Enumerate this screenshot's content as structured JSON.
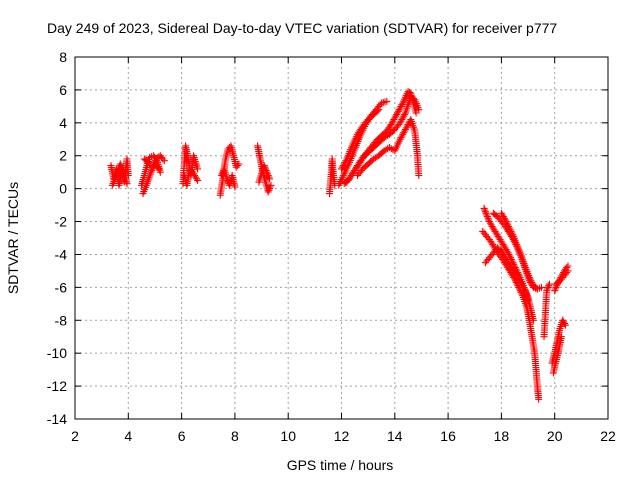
{
  "chart_data": {
    "type": "scatter",
    "title": "Day 249 of 2023, Sidereal Day-to-day VTEC variation (SDTVAR) for receiver p777",
    "xlabel": "GPS time / hours",
    "ylabel": "SDTVAR / TECUs",
    "xlim": [
      2,
      22
    ],
    "ylim": [
      -14,
      8
    ],
    "x_ticks": [
      2,
      4,
      6,
      8,
      10,
      12,
      14,
      16,
      18,
      20,
      22
    ],
    "y_ticks": [
      -14,
      -12,
      -10,
      -8,
      -6,
      -4,
      -2,
      0,
      2,
      4,
      6,
      8
    ],
    "grid": true,
    "marker": "plus",
    "color": "#ff0000",
    "series": [
      {
        "segments": [
          [
            [
              3.35,
              1.4
            ],
            [
              3.45,
              0.6
            ],
            [
              3.55,
              1.2
            ],
            [
              3.65,
              0.2
            ],
            [
              3.75,
              1.0
            ],
            [
              3.85,
              0.4
            ],
            [
              3.95,
              1.8
            ],
            [
              4.0,
              0.8
            ]
          ],
          [
            [
              3.4,
              0.2
            ],
            [
              3.55,
              0.8
            ],
            [
              3.7,
              1.5
            ],
            [
              3.85,
              1.0
            ],
            [
              3.95,
              0.3
            ]
          ],
          [
            [
              4.5,
              0.2
            ],
            [
              4.6,
              0.8
            ],
            [
              4.7,
              1.4
            ],
            [
              4.8,
              1.9
            ],
            [
              4.95,
              2.0
            ],
            [
              5.1,
              1.6
            ],
            [
              5.2,
              1.0
            ]
          ],
          [
            [
              4.6,
              1.8
            ],
            [
              4.75,
              1.6
            ],
            [
              4.9,
              1.3
            ],
            [
              5.05,
              1.8
            ],
            [
              5.2,
              2.0
            ],
            [
              5.35,
              1.7
            ]
          ],
          [
            [
              4.55,
              -0.3
            ],
            [
              4.7,
              0.3
            ],
            [
              4.85,
              1.0
            ],
            [
              5.0,
              1.5
            ],
            [
              5.15,
              1.2
            ]
          ],
          [
            [
              6.05,
              0.3
            ],
            [
              6.1,
              1.5
            ],
            [
              6.15,
              2.6
            ],
            [
              6.25,
              1.8
            ],
            [
              6.35,
              0.8
            ],
            [
              6.45,
              2.0
            ],
            [
              6.6,
              1.2
            ]
          ],
          [
            [
              6.1,
              0.8
            ],
            [
              6.2,
              0.2
            ],
            [
              6.3,
              1.2
            ],
            [
              6.45,
              0.9
            ],
            [
              6.6,
              0.5
            ]
          ],
          [
            [
              7.45,
              -0.4
            ],
            [
              7.55,
              0.6
            ],
            [
              7.65,
              1.8
            ],
            [
              7.75,
              2.4
            ],
            [
              7.85,
              2.6
            ],
            [
              7.95,
              2.0
            ],
            [
              8.05,
              1.3
            ],
            [
              8.15,
              1.5
            ]
          ],
          [
            [
              7.5,
              0.8
            ],
            [
              7.6,
              1.2
            ],
            [
              7.7,
              0.6
            ],
            [
              7.8,
              0.2
            ],
            [
              7.9,
              0.8
            ],
            [
              8.0,
              0.1
            ]
          ],
          [
            [
              8.85,
              2.6
            ],
            [
              8.95,
              1.8
            ],
            [
              9.05,
              1.0
            ],
            [
              9.15,
              0.4
            ],
            [
              9.25,
              -0.2
            ],
            [
              9.35,
              0.2
            ]
          ],
          [
            [
              8.9,
              0.4
            ],
            [
              9.0,
              0.9
            ],
            [
              9.1,
              1.4
            ],
            [
              9.2,
              1.0
            ],
            [
              9.3,
              0.6
            ]
          ],
          [
            [
              11.55,
              -0.3
            ],
            [
              11.6,
              0.6
            ],
            [
              11.65,
              1.8
            ],
            [
              11.7,
              0.8
            ],
            [
              11.75,
              0.2
            ]
          ],
          [
            [
              11.9,
              0.2
            ],
            [
              12.1,
              0.9
            ],
            [
              12.3,
              1.6
            ],
            [
              12.5,
              2.4
            ],
            [
              12.7,
              3.2
            ],
            [
              12.9,
              3.9
            ],
            [
              13.1,
              4.4
            ],
            [
              13.3,
              4.8
            ],
            [
              13.5,
              5.2
            ],
            [
              13.7,
              5.3
            ]
          ],
          [
            [
              12.0,
              1.2
            ],
            [
              12.2,
              1.8
            ],
            [
              12.4,
              2.6
            ],
            [
              12.6,
              3.3
            ],
            [
              12.8,
              3.8
            ],
            [
              13.0,
              4.2
            ],
            [
              13.2,
              4.5
            ],
            [
              13.4,
              4.8
            ]
          ],
          [
            [
              12.1,
              0.3
            ],
            [
              12.3,
              0.6
            ],
            [
              12.5,
              1.1
            ],
            [
              12.7,
              1.6
            ],
            [
              12.9,
              2.1
            ],
            [
              13.1,
              2.5
            ],
            [
              13.3,
              2.9
            ],
            [
              13.5,
              3.2
            ],
            [
              13.7,
              3.5
            ],
            [
              13.9,
              4.0
            ],
            [
              14.1,
              4.6
            ],
            [
              14.3,
              5.2
            ],
            [
              14.5,
              5.9
            ],
            [
              14.6,
              5.8
            ],
            [
              14.7,
              5.2
            ],
            [
              14.8,
              4.6
            ]
          ],
          [
            [
              12.6,
              0.8
            ],
            [
              12.8,
              1.2
            ],
            [
              13.0,
              1.5
            ],
            [
              13.2,
              1.8
            ],
            [
              13.4,
              2.0
            ],
            [
              13.6,
              2.3
            ],
            [
              13.8,
              2.5
            ],
            [
              14.0,
              2.3
            ],
            [
              14.2,
              3.0
            ],
            [
              14.4,
              3.6
            ],
            [
              14.6,
              4.2
            ],
            [
              14.75,
              3.5
            ],
            [
              14.85,
              2.0
            ],
            [
              14.9,
              0.8
            ]
          ],
          [
            [
              12.2,
              0.4
            ],
            [
              12.4,
              0.9
            ],
            [
              12.6,
              1.4
            ],
            [
              12.8,
              1.9
            ],
            [
              13.0,
              2.2
            ],
            [
              13.2,
              2.5
            ],
            [
              13.4,
              2.8
            ],
            [
              13.6,
              3.1
            ],
            [
              13.8,
              3.3
            ],
            [
              14.0,
              3.6
            ],
            [
              14.2,
              4.0
            ],
            [
              14.4,
              4.6
            ],
            [
              14.6,
              5.6
            ],
            [
              14.75,
              5.4
            ],
            [
              14.9,
              4.8
            ]
          ],
          [
            [
              17.35,
              -1.2
            ],
            [
              17.45,
              -1.6
            ],
            [
              17.55,
              -2.0
            ],
            [
              17.65,
              -2.3
            ],
            [
              17.8,
              -2.7
            ],
            [
              17.95,
              -3.1
            ],
            [
              18.1,
              -3.5
            ],
            [
              18.25,
              -3.9
            ],
            [
              18.4,
              -4.4
            ],
            [
              18.55,
              -4.9
            ],
            [
              18.7,
              -5.4
            ],
            [
              18.85,
              -6.0
            ],
            [
              19.0,
              -6.6
            ],
            [
              19.1,
              -7.3
            ],
            [
              19.2,
              -8.0
            ]
          ],
          [
            [
              17.3,
              -2.6
            ],
            [
              17.45,
              -2.9
            ],
            [
              17.6,
              -3.2
            ],
            [
              17.75,
              -3.6
            ],
            [
              17.9,
              -4.0
            ],
            [
              18.05,
              -4.3
            ],
            [
              18.2,
              -4.7
            ],
            [
              18.35,
              -5.1
            ],
            [
              18.5,
              -5.5
            ],
            [
              18.65,
              -6.0
            ],
            [
              18.8,
              -6.5
            ],
            [
              18.95,
              -7.2
            ],
            [
              19.05,
              -8.0
            ],
            [
              19.15,
              -9.0
            ],
            [
              19.25,
              -10.0
            ],
            [
              19.3,
              -11.0
            ],
            [
              19.35,
              -12.0
            ],
            [
              19.4,
              -12.8
            ]
          ],
          [
            [
              17.4,
              -4.5
            ],
            [
              17.55,
              -4.2
            ],
            [
              17.7,
              -3.9
            ],
            [
              17.85,
              -3.6
            ],
            [
              18.0,
              -3.8
            ],
            [
              18.15,
              -4.2
            ],
            [
              18.3,
              -4.6
            ],
            [
              18.45,
              -5.0
            ],
            [
              18.6,
              -5.4
            ],
            [
              18.75,
              -5.8
            ],
            [
              18.9,
              -6.2
            ],
            [
              19.0,
              -6.8
            ]
          ],
          [
            [
              17.7,
              -1.5
            ],
            [
              17.85,
              -1.7
            ],
            [
              18.0,
              -2.0
            ],
            [
              18.15,
              -2.3
            ],
            [
              18.3,
              -2.7
            ],
            [
              18.45,
              -3.1
            ],
            [
              18.6,
              -3.6
            ],
            [
              18.75,
              -4.2
            ],
            [
              18.9,
              -4.9
            ],
            [
              19.05,
              -5.6
            ],
            [
              19.2,
              -6.0
            ],
            [
              19.35,
              -6.1
            ]
          ],
          [
            [
              18.0,
              -1.5
            ],
            [
              18.15,
              -1.9
            ],
            [
              18.3,
              -2.4
            ],
            [
              18.45,
              -2.9
            ],
            [
              18.6,
              -3.5
            ],
            [
              18.75,
              -4.1
            ],
            [
              18.9,
              -4.8
            ],
            [
              19.05,
              -5.4
            ],
            [
              19.2,
              -5.9
            ],
            [
              19.35,
              -6.1
            ],
            [
              19.5,
              -6.0
            ]
          ],
          [
            [
              19.6,
              -9.0
            ],
            [
              19.7,
              -6.2
            ],
            [
              19.8,
              -5.8
            ]
          ],
          [
            [
              19.9,
              -10.6
            ],
            [
              20.0,
              -10.0
            ],
            [
              20.1,
              -9.2
            ],
            [
              20.2,
              -8.5
            ],
            [
              20.3,
              -8.0
            ],
            [
              20.4,
              -8.3
            ]
          ],
          [
            [
              19.95,
              -11.2
            ],
            [
              20.05,
              -10.5
            ],
            [
              20.15,
              -9.8
            ],
            [
              20.25,
              -9.0
            ]
          ],
          [
            [
              20.0,
              -6.2
            ],
            [
              20.1,
              -5.8
            ],
            [
              20.2,
              -5.5
            ],
            [
              20.3,
              -5.2
            ],
            [
              20.4,
              -4.9
            ],
            [
              20.5,
              -4.7
            ]
          ],
          [
            [
              20.05,
              -5.8
            ],
            [
              20.2,
              -5.6
            ],
            [
              20.35,
              -5.3
            ],
            [
              20.5,
              -5.0
            ]
          ]
        ]
      }
    ]
  }
}
